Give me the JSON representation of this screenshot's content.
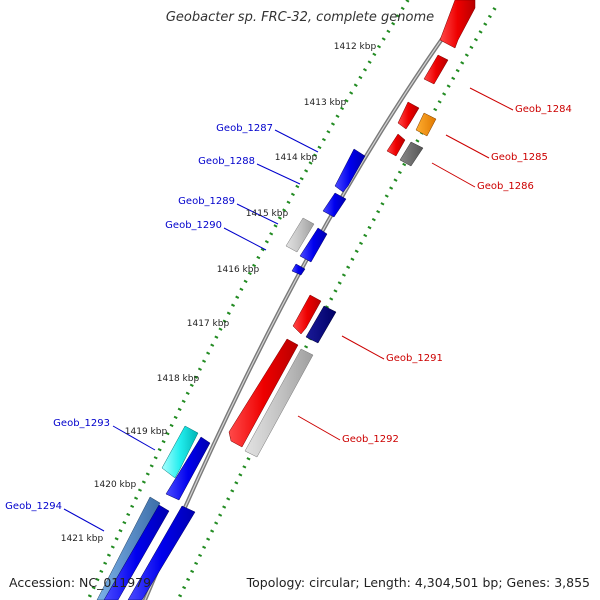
{
  "title": "Geobacter sp. FRC-32, complete genome",
  "footer": {
    "accession": "Accession: NC_011979",
    "summary": "Topology: circular; Length: 4,304,501 bp; Genes: 3,855"
  },
  "colors": {
    "reverse_label": "#0000cc",
    "forward_label": "#cc0000",
    "backbone": "#888888",
    "dotted_track": "#228b22",
    "tick_label": "#222222"
  },
  "ticks": [
    {
      "label": "1412 kbp"
    },
    {
      "label": "1413 kbp"
    },
    {
      "label": "1414 kbp"
    },
    {
      "label": "1415 kbp"
    },
    {
      "label": "1416 kbp"
    },
    {
      "label": "1417 kbp"
    },
    {
      "label": "1418 kbp"
    },
    {
      "label": "1419 kbp"
    },
    {
      "label": "1420 kbp"
    },
    {
      "label": "1421 kbp"
    }
  ],
  "gene_labels_reverse": [
    {
      "label": "Geob_1287"
    },
    {
      "label": "Geob_1288"
    },
    {
      "label": "Geob_1289"
    },
    {
      "label": "Geob_1290"
    },
    {
      "label": "Geob_1293"
    },
    {
      "label": "Geob_1294"
    }
  ],
  "gene_labels_forward": [
    {
      "label": "Geob_1284"
    },
    {
      "label": "Geob_1285"
    },
    {
      "label": "Geob_1286"
    },
    {
      "label": "Geob_1291"
    },
    {
      "label": "Geob_1292"
    }
  ]
}
